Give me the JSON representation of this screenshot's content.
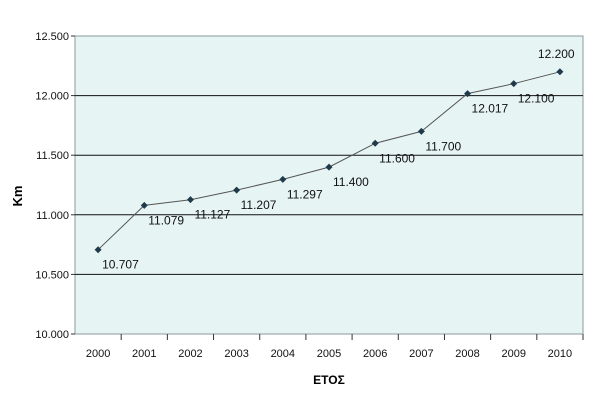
{
  "chart_data": {
    "type": "line",
    "title": "",
    "xlabel": "ΕΤΟΣ",
    "ylabel": "Km",
    "categories": [
      "2000",
      "2001",
      "2002",
      "2003",
      "2004",
      "2005",
      "2006",
      "2007",
      "2008",
      "2009",
      "2010"
    ],
    "series": [
      {
        "values": [
          10707,
          11079,
          11127,
          11207,
          11297,
          11400,
          11600,
          11700,
          12017,
          12100,
          12200
        ],
        "labels": [
          "10.707",
          "11.079",
          "11.127",
          "11.207",
          "11.297",
          "11.400",
          "11.600",
          "11.700",
          "12.017",
          "12.100",
          "12.200"
        ]
      }
    ],
    "ylim": [
      10000,
      12500
    ],
    "yticks": [
      10000,
      10500,
      11000,
      11500,
      12000,
      12500
    ],
    "ytick_labels": [
      "10.000",
      "10.500",
      "11.000",
      "11.500",
      "12.000",
      "12.500"
    ],
    "grid": true,
    "legend": "none",
    "colors": {
      "plot_background": "#e7f4f4",
      "line": "#555555",
      "marker": "#1f3a4a",
      "gridline": "#111111",
      "text": "#111111"
    }
  }
}
